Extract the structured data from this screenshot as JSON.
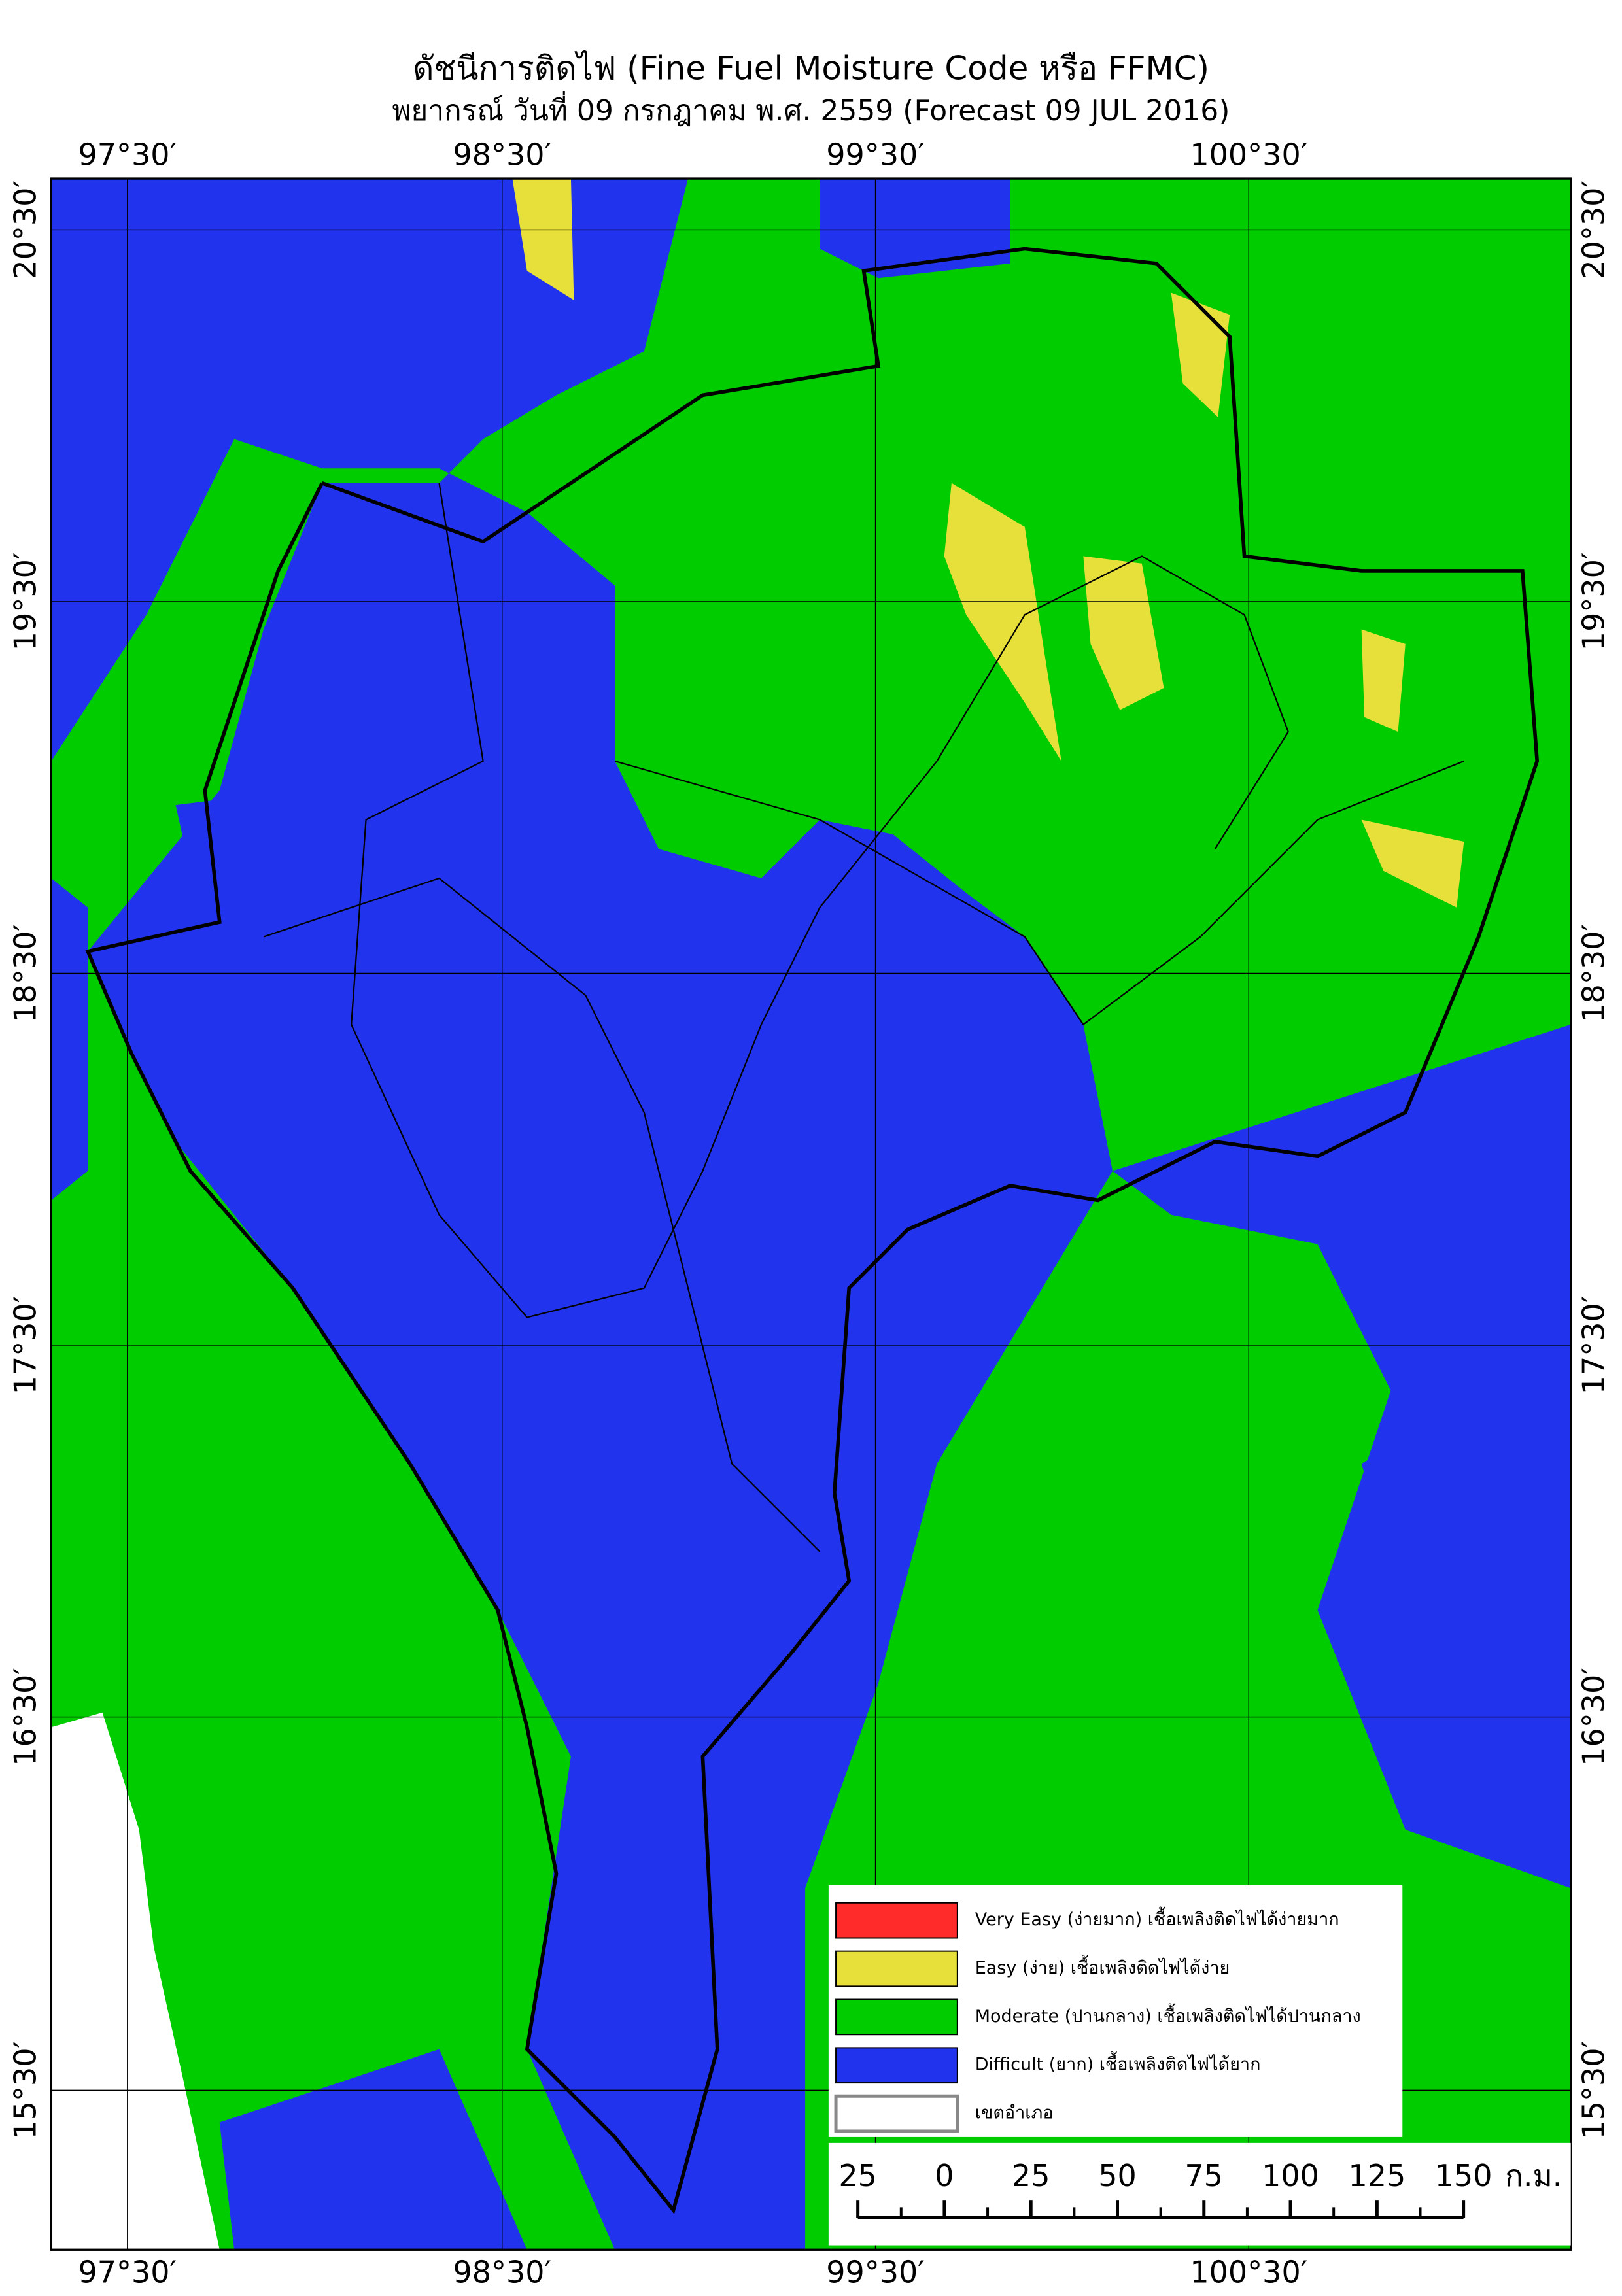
{
  "header": {
    "title": "ดัชนีการติดไฟ (Fine Fuel Moisture Code หรือ FFMC)",
    "subtitle": "พยากรณ์ วันที่ 09 กรกฎาคม พ.ศ. 2559 (Forecast 09 JUL 2016)"
  },
  "map": {
    "lon_labels": [
      "97°30′",
      "98°30′",
      "99°30′",
      "100°30′"
    ],
    "lat_labels": [
      "20°30′",
      "19°30′",
      "18°30′",
      "17°30′",
      "16°30′",
      "15°30′"
    ]
  },
  "legend": {
    "items": [
      {
        "label": "Very Easy (ง่ายมาก) เชื้อเพลิงติดไฟได้ง่ายมาก",
        "color": "#ff2a2a"
      },
      {
        "label": "Easy (ง่าย) เชื้อเพลิงติดไฟได้ง่าย",
        "color": "#e8e03a"
      },
      {
        "label": "Moderate (ปานกลาง) เชื้อเพลิงติดไฟได้ปานกลาง",
        "color": "#00cc00"
      },
      {
        "label": "Difficult (ยาก) เชื้อเพลิงติดไฟได้ยาก",
        "color": "#2233ee"
      },
      {
        "label": "เขตอำเภอ",
        "color": "#ffffff"
      }
    ]
  },
  "scale_bar": {
    "labels": [
      "25",
      "0",
      "25",
      "50",
      "75",
      "100",
      "125",
      "150"
    ],
    "unit": "ก.ม."
  }
}
